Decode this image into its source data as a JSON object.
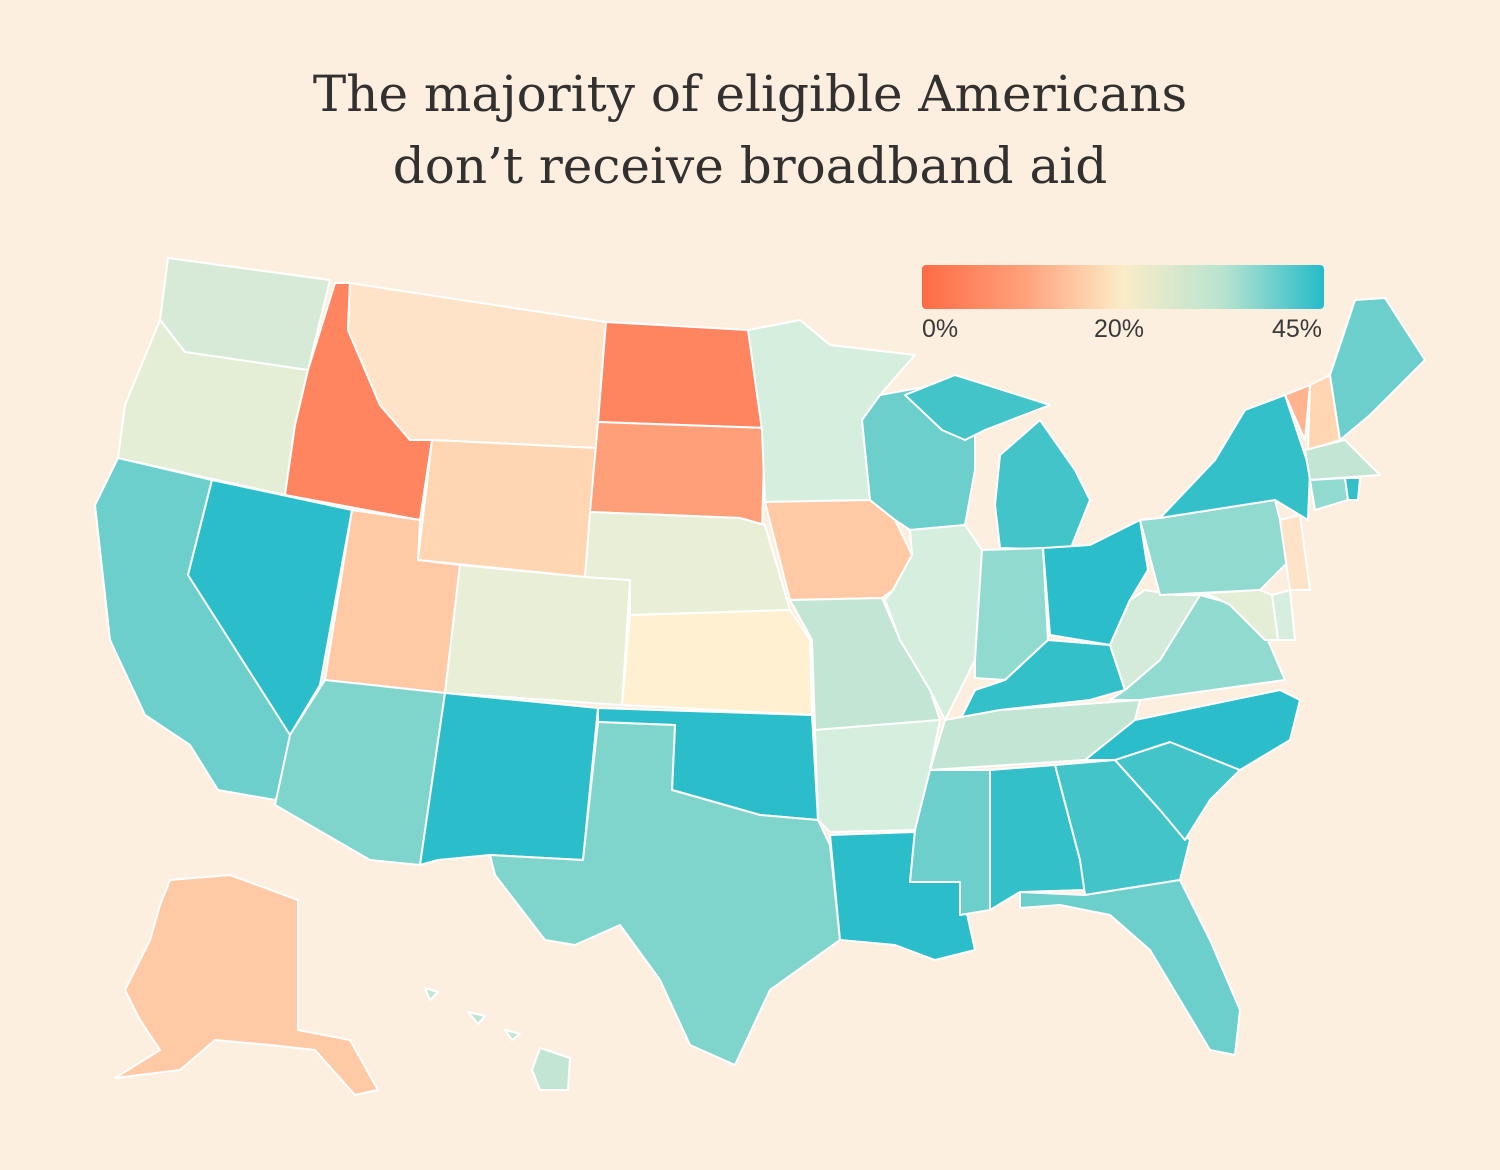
{
  "title_lines": [
    "The majority of eligible Americans",
    "don’t receive broadband aid"
  ],
  "legend": {
    "ticks": [
      "0%",
      "20%",
      "45%"
    ],
    "tick_values": [
      0,
      20,
      45
    ],
    "colors": [
      "#fd6b45",
      "#ffa079",
      "#fbecc8",
      "#b8e3cf",
      "#25bbc9"
    ]
  },
  "map_data": {
    "metric": "share of eligible Americans receiving broadband aid (%)",
    "scale_min": 0,
    "scale_mid": 20,
    "scale_max": 45,
    "states": [
      {
        "state": "WA",
        "value": 28,
        "color": "#d6ead7"
      },
      {
        "state": "OR",
        "value": 24,
        "color": "#e4eed6"
      },
      {
        "state": "CA",
        "value": 38,
        "color": "#6ccfcb"
      },
      {
        "state": "NV",
        "value": 44,
        "color": "#2bbdc9"
      },
      {
        "state": "ID",
        "value": 2,
        "color": "#ff8560"
      },
      {
        "state": "MT",
        "value": 17,
        "color": "#ffe3c8"
      },
      {
        "state": "WY",
        "value": 14,
        "color": "#ffd6b1"
      },
      {
        "state": "UT",
        "value": 12,
        "color": "#ffc9a6"
      },
      {
        "state": "AZ",
        "value": 35,
        "color": "#7fd4cc"
      },
      {
        "state": "CO",
        "value": 23,
        "color": "#e9eed6"
      },
      {
        "state": "NM",
        "value": 44,
        "color": "#2bbdc9"
      },
      {
        "state": "ND",
        "value": 3,
        "color": "#ff8560"
      },
      {
        "state": "SD",
        "value": 7,
        "color": "#ff9f79"
      },
      {
        "state": "NE",
        "value": 23,
        "color": "#e9eed6"
      },
      {
        "state": "KS",
        "value": 20,
        "color": "#fff0d2"
      },
      {
        "state": "OK",
        "value": 44,
        "color": "#2bbdc9"
      },
      {
        "state": "TX",
        "value": 35,
        "color": "#7fd4cc"
      },
      {
        "state": "MN",
        "value": 27,
        "color": "#d6eedd"
      },
      {
        "state": "IA",
        "value": 12,
        "color": "#ffc9a6"
      },
      {
        "state": "MO",
        "value": 29,
        "color": "#c3e5d3"
      },
      {
        "state": "AR",
        "value": 27,
        "color": "#d6eedd"
      },
      {
        "state": "LA",
        "value": 44,
        "color": "#2bbdc9"
      },
      {
        "state": "WI",
        "value": 38,
        "color": "#6ccfcb"
      },
      {
        "state": "IL",
        "value": 27,
        "color": "#d6eedd"
      },
      {
        "state": "MI",
        "value": 41,
        "color": "#42c4c8"
      },
      {
        "state": "IN",
        "value": 34,
        "color": "#91dacf"
      },
      {
        "state": "OH",
        "value": 44,
        "color": "#2bbdc9"
      },
      {
        "state": "KY",
        "value": 42,
        "color": "#34c0c9"
      },
      {
        "state": "TN",
        "value": 29,
        "color": "#c3e5d3"
      },
      {
        "state": "MS",
        "value": 38,
        "color": "#6ccfcb"
      },
      {
        "state": "AL",
        "value": 42,
        "color": "#34c0c9"
      },
      {
        "state": "GA",
        "value": 41,
        "color": "#42c4c8"
      },
      {
        "state": "FL",
        "value": 38,
        "color": "#6ccfcb"
      },
      {
        "state": "SC",
        "value": 41,
        "color": "#42c4c8"
      },
      {
        "state": "NC",
        "value": 44,
        "color": "#2bbdc9"
      },
      {
        "state": "VA",
        "value": 34,
        "color": "#91dacf"
      },
      {
        "state": "WV",
        "value": 28,
        "color": "#d3ebd8"
      },
      {
        "state": "PA",
        "value": 34,
        "color": "#91dacf"
      },
      {
        "state": "NY",
        "value": 42,
        "color": "#34c0c9"
      },
      {
        "state": "VT",
        "value": 9,
        "color": "#ffb38e"
      },
      {
        "state": "NH",
        "value": 15,
        "color": "#ffd6b1"
      },
      {
        "state": "ME",
        "value": 38,
        "color": "#6ccfcb"
      },
      {
        "state": "MA",
        "value": 30,
        "color": "#c3e5d3"
      },
      {
        "state": "CT",
        "value": 34,
        "color": "#91dacf"
      },
      {
        "state": "RI",
        "value": 42,
        "color": "#34c0c9"
      },
      {
        "state": "NJ",
        "value": 18,
        "color": "#ffe3c8"
      },
      {
        "state": "DE",
        "value": 26,
        "color": "#d6eedd"
      },
      {
        "state": "MD",
        "value": 24,
        "color": "#e4eed6"
      },
      {
        "state": "AK",
        "value": 12,
        "color": "#ffc9a6"
      },
      {
        "state": "HI",
        "value": 30,
        "color": "#c3e5d3"
      }
    ]
  }
}
